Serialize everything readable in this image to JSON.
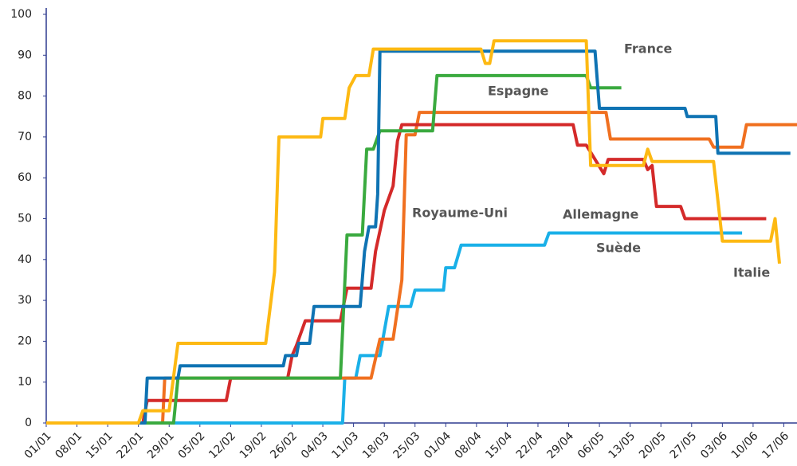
{
  "chart_data": {
    "type": "line",
    "xlim": [
      0,
      171
    ],
    "ylim": [
      0,
      100
    ],
    "yticks": [
      0,
      10,
      20,
      30,
      40,
      50,
      60,
      70,
      80,
      90,
      100
    ],
    "xticks": [
      {
        "value": 0,
        "label": "01/01"
      },
      {
        "value": 7,
        "label": "08/01"
      },
      {
        "value": 14,
        "label": "15/01"
      },
      {
        "value": 21,
        "label": "22/01"
      },
      {
        "value": 28,
        "label": "29/01"
      },
      {
        "value": 35,
        "label": "05/02"
      },
      {
        "value": 42,
        "label": "12/02"
      },
      {
        "value": 49,
        "label": "19/02"
      },
      {
        "value": 56,
        "label": "26/02"
      },
      {
        "value": 63,
        "label": "04/03"
      },
      {
        "value": 70,
        "label": "11/03"
      },
      {
        "value": 77,
        "label": "18/03"
      },
      {
        "value": 84,
        "label": "25/03"
      },
      {
        "value": 91,
        "label": "01/04"
      },
      {
        "value": 98,
        "label": "08/04"
      },
      {
        "value": 105,
        "label": "15/04"
      },
      {
        "value": 112,
        "label": "22/04"
      },
      {
        "value": 119,
        "label": "29/04"
      },
      {
        "value": 126,
        "label": "06/05"
      },
      {
        "value": 133,
        "label": "13/05"
      },
      {
        "value": 140,
        "label": "20/05"
      },
      {
        "value": 147,
        "label": "27/05"
      },
      {
        "value": 154,
        "label": "03/06"
      },
      {
        "value": 161,
        "label": "10/06"
      },
      {
        "value": 168,
        "label": "17/06"
      }
    ],
    "grid": false,
    "series": [
      {
        "name": "Suède",
        "color": "#1ab0e8",
        "x": [
          0,
          67.5,
          68,
          70.5,
          71.5,
          76,
          78,
          83,
          84,
          90.5,
          91,
          93,
          94.5,
          113.5,
          114.5,
          158.5
        ],
        "values": [
          0,
          0,
          11,
          11,
          16.5,
          16.5,
          28.5,
          28.5,
          32.5,
          32.5,
          38,
          38,
          43.5,
          43.5,
          46.5,
          46.5
        ]
      },
      {
        "name": "Royaume-Uni",
        "color": "#f07020",
        "x": [
          0,
          26.5,
          27,
          74,
          76,
          79,
          81,
          82,
          84,
          85,
          127.5,
          128.5,
          151,
          152,
          158.5,
          159.5,
          171
        ],
        "values": [
          0,
          0,
          11,
          11,
          20.5,
          20.5,
          35,
          70.5,
          70.5,
          76,
          76,
          69.5,
          69.5,
          67.5,
          67.5,
          73,
          73
        ]
      },
      {
        "name": "Allemagne",
        "color": "#d42a2a",
        "x": [
          0,
          22,
          23,
          41,
          42,
          55,
          56,
          57,
          59,
          67,
          68.5,
          74,
          75,
          77,
          79,
          80,
          81,
          120,
          121,
          123,
          127,
          128,
          136,
          137,
          138,
          139,
          144.5,
          145.5,
          164
        ],
        "values": [
          0,
          0,
          5.5,
          5.5,
          11,
          11,
          16.5,
          19,
          25,
          25,
          33,
          33,
          42,
          52,
          58,
          69,
          73,
          73,
          68,
          68,
          61,
          64.5,
          64.5,
          62,
          63,
          53,
          53,
          50,
          50
        ]
      },
      {
        "name": "Espagne",
        "color": "#3aaa3f",
        "x": [
          0,
          29,
          30,
          67,
          68.5,
          72,
          73,
          74.5,
          76,
          88,
          89,
          123,
          124,
          131
        ],
        "values": [
          0,
          0,
          11,
          11,
          46,
          46,
          67,
          67,
          71.5,
          71.5,
          85,
          85,
          82,
          82
        ]
      },
      {
        "name": "France",
        "color": "#0f73b3",
        "x": [
          0,
          22.5,
          23,
          30,
          30.5,
          54,
          54.5,
          57,
          57.5,
          60,
          61,
          71.5,
          72.5,
          73.5,
          75,
          75.5,
          76,
          125,
          126,
          145.5,
          146,
          152.5,
          153,
          169.5
        ],
        "values": [
          0,
          0,
          11,
          11,
          14,
          14,
          16.5,
          16.5,
          19.5,
          19.5,
          28.5,
          28.5,
          42,
          48,
          48,
          56,
          91,
          91,
          77,
          77,
          75,
          75,
          66,
          66
        ]
      },
      {
        "name": "Italie",
        "color": "#fdb913",
        "x": [
          0,
          21,
          22,
          28,
          30,
          50,
          52,
          53,
          62.5,
          63,
          68,
          69,
          70.5,
          73.5,
          74.5,
          99,
          100,
          101,
          102,
          123,
          124,
          136,
          137,
          138,
          152,
          154,
          165,
          166,
          167
        ],
        "values": [
          0,
          0,
          3,
          3,
          19.5,
          19.5,
          37,
          70,
          70,
          74.5,
          74.5,
          82,
          85,
          85,
          91.5,
          91.5,
          88,
          88,
          93.5,
          93.5,
          63,
          63,
          67,
          64,
          64,
          44.5,
          44.5,
          50,
          39
        ]
      }
    ]
  }
}
